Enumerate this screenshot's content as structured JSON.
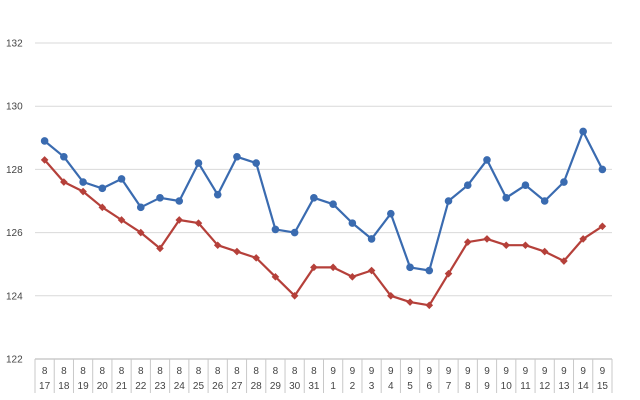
{
  "chart_data": {
    "type": "line",
    "title": "",
    "xlabel": "",
    "ylabel": "",
    "ylim": [
      122,
      132
    ],
    "yticks": [
      "122",
      "124",
      "126",
      "128",
      "130",
      "132"
    ],
    "grid": true,
    "legend": "none",
    "categories": [
      {
        "month": "8",
        "day": "17"
      },
      {
        "month": "8",
        "day": "18"
      },
      {
        "month": "8",
        "day": "19"
      },
      {
        "month": "8",
        "day": "20"
      },
      {
        "month": "8",
        "day": "21"
      },
      {
        "month": "8",
        "day": "22"
      },
      {
        "month": "8",
        "day": "23"
      },
      {
        "month": "8",
        "day": "24"
      },
      {
        "month": "8",
        "day": "25"
      },
      {
        "month": "8",
        "day": "26"
      },
      {
        "month": "8",
        "day": "27"
      },
      {
        "month": "8",
        "day": "28"
      },
      {
        "month": "8",
        "day": "29"
      },
      {
        "month": "8",
        "day": "30"
      },
      {
        "month": "8",
        "day": "31"
      },
      {
        "month": "9",
        "day": "1"
      },
      {
        "month": "9",
        "day": "2"
      },
      {
        "month": "9",
        "day": "3"
      },
      {
        "month": "9",
        "day": "4"
      },
      {
        "month": "9",
        "day": "5"
      },
      {
        "month": "9",
        "day": "6"
      },
      {
        "month": "9",
        "day": "7"
      },
      {
        "month": "9",
        "day": "8"
      },
      {
        "month": "9",
        "day": "9"
      },
      {
        "month": "9",
        "day": "10"
      },
      {
        "month": "9",
        "day": "11"
      },
      {
        "month": "9",
        "day": "12"
      },
      {
        "month": "9",
        "day": "13"
      },
      {
        "month": "9",
        "day": "14"
      },
      {
        "month": "9",
        "day": "15"
      }
    ],
    "series": [
      {
        "color": "#3a6bb0",
        "marker": "circle",
        "values": [
          128.9,
          128.4,
          127.6,
          127.4,
          127.7,
          126.8,
          127.1,
          127.0,
          128.2,
          127.2,
          128.4,
          128.2,
          126.1,
          126.0,
          127.1,
          126.9,
          126.3,
          125.8,
          126.6,
          124.9,
          124.8,
          127.0,
          127.5,
          128.3,
          127.1,
          127.5,
          127.0,
          127.6,
          129.2,
          128.0
        ]
      },
      {
        "color": "#b5403a",
        "marker": "diamond",
        "values": [
          128.3,
          127.6,
          127.3,
          126.8,
          126.4,
          126.0,
          125.5,
          126.4,
          126.3,
          125.6,
          125.4,
          125.2,
          124.6,
          124.0,
          124.9,
          124.9,
          124.6,
          124.8,
          124.0,
          123.8,
          123.7,
          124.7,
          125.7,
          125.8,
          125.6,
          125.6,
          125.4,
          125.1,
          125.8,
          126.2
        ]
      }
    ]
  }
}
